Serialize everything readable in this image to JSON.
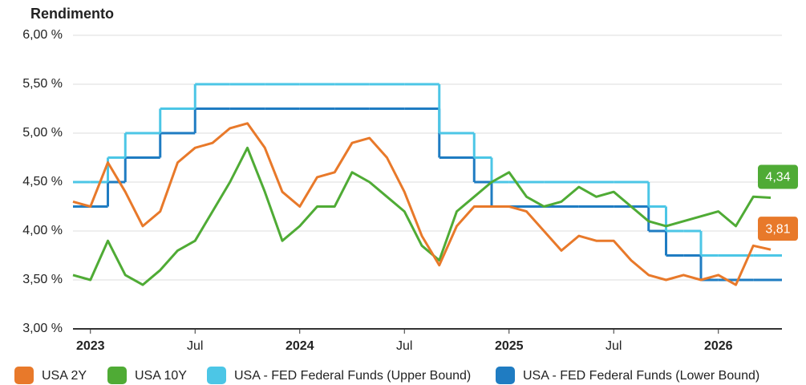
{
  "chart_data": {
    "type": "line",
    "title": "Rendimento",
    "x": [
      "2022-12",
      "2023-01",
      "2023-02",
      "2023-03",
      "2023-04",
      "2023-05",
      "2023-06",
      "2023-07",
      "2023-08",
      "2023-09",
      "2023-10",
      "2023-11",
      "2023-12",
      "2024-01",
      "2024-02",
      "2024-03",
      "2024-04",
      "2024-05",
      "2024-06",
      "2024-07",
      "2024-08",
      "2024-09",
      "2024-10",
      "2024-11",
      "2024-12",
      "2025-01",
      "2025-02",
      "2025-03",
      "2025-04",
      "2025-05",
      "2025-06",
      "2025-07",
      "2025-08",
      "2025-09",
      "2025-10",
      "2025-11",
      "2025-12",
      "2026-01",
      "2026-02",
      "2026-03",
      "2026-04"
    ],
    "xlim": [
      "2022-12",
      "2026-04"
    ],
    "xticks": [
      {
        "value": "2023-01",
        "label": "2023"
      },
      {
        "value": "2023-07",
        "label": "Jul"
      },
      {
        "value": "2024-01",
        "label": "2024"
      },
      {
        "value": "2024-07",
        "label": "Jul"
      },
      {
        "value": "2025-01",
        "label": "2025"
      },
      {
        "value": "2025-07",
        "label": "Jul"
      },
      {
        "value": "2026-01",
        "label": "2026"
      }
    ],
    "ylim": [
      3.0,
      6.0
    ],
    "yticks": [
      {
        "value": 3.0,
        "label": "3,00 %"
      },
      {
        "value": 3.5,
        "label": "3,50 %"
      },
      {
        "value": 4.0,
        "label": "4,00 %"
      },
      {
        "value": 4.5,
        "label": "4,50 %"
      },
      {
        "value": 5.0,
        "label": "5,00 %"
      },
      {
        "value": 5.5,
        "label": "5,50 %"
      },
      {
        "value": 6.0,
        "label": "6,00 %"
      }
    ],
    "grid": true,
    "legend": "bottom",
    "series": [
      {
        "name": "USA 2Y",
        "color": "#e8792a",
        "values": [
          4.3,
          4.25,
          4.7,
          4.4,
          4.05,
          4.2,
          4.7,
          4.85,
          4.9,
          5.05,
          5.1,
          4.85,
          4.4,
          4.25,
          4.55,
          4.6,
          4.9,
          4.95,
          4.75,
          4.4,
          3.95,
          3.65,
          4.05,
          4.25,
          4.25,
          4.25,
          4.2,
          4.0,
          3.8,
          3.95,
          3.9,
          3.9,
          3.7,
          3.55,
          3.5,
          3.55,
          3.5,
          3.55,
          3.45,
          3.85,
          3.81
        ],
        "value_labels": [
          null,
          null,
          null,
          null,
          null,
          null,
          null,
          null,
          null,
          null,
          null,
          null,
          null,
          null,
          null,
          null,
          null,
          null,
          null,
          null,
          null,
          null,
          null,
          null,
          null,
          null,
          null,
          null,
          null,
          null,
          null,
          null,
          null,
          null,
          null,
          null,
          null,
          null,
          null,
          null,
          "3,81"
        ]
      },
      {
        "name": "USA 10Y",
        "color": "#4fab35",
        "values": [
          3.55,
          3.5,
          3.9,
          3.55,
          3.45,
          3.6,
          3.8,
          3.9,
          4.2,
          4.5,
          4.85,
          4.4,
          3.9,
          4.05,
          4.25,
          4.25,
          4.6,
          4.5,
          4.35,
          4.2,
          3.85,
          3.7,
          4.2,
          4.35,
          4.5,
          4.6,
          4.35,
          4.25,
          4.3,
          4.45,
          4.35,
          4.4,
          4.25,
          4.1,
          4.05,
          4.1,
          4.15,
          4.2,
          4.05,
          4.35,
          4.34
        ],
        "value_labels": [
          null,
          null,
          null,
          null,
          null,
          null,
          null,
          null,
          null,
          null,
          null,
          null,
          null,
          null,
          null,
          null,
          null,
          null,
          null,
          null,
          null,
          null,
          null,
          null,
          null,
          null,
          null,
          null,
          null,
          null,
          null,
          null,
          null,
          null,
          null,
          null,
          null,
          null,
          null,
          null,
          "4,34"
        ]
      },
      {
        "name": "USA - FED Federal Funds (Upper Bound)",
        "color": "#4cc6e6",
        "step": true,
        "values": [
          4.5,
          4.5,
          4.75,
          5.0,
          5.0,
          5.25,
          5.25,
          5.5,
          5.5,
          5.5,
          5.5,
          5.5,
          5.5,
          5.5,
          5.5,
          5.5,
          5.5,
          5.5,
          5.5,
          5.5,
          5.5,
          5.0,
          5.0,
          4.75,
          4.5,
          4.5,
          4.5,
          4.5,
          4.5,
          4.5,
          4.5,
          4.5,
          4.5,
          4.25,
          4.0,
          4.0,
          3.75,
          3.75,
          3.75,
          3.75,
          3.75
        ]
      },
      {
        "name": "USA - FED Federal Funds (Lower Bound)",
        "color": "#1f7cc2",
        "step": true,
        "values": [
          4.25,
          4.25,
          4.5,
          4.75,
          4.75,
          5.0,
          5.0,
          5.25,
          5.25,
          5.25,
          5.25,
          5.25,
          5.25,
          5.25,
          5.25,
          5.25,
          5.25,
          5.25,
          5.25,
          5.25,
          5.25,
          4.75,
          4.75,
          4.5,
          4.25,
          4.25,
          4.25,
          4.25,
          4.25,
          4.25,
          4.25,
          4.25,
          4.25,
          4.0,
          3.75,
          3.75,
          3.5,
          3.5,
          3.5,
          3.5,
          3.5
        ]
      }
    ]
  }
}
